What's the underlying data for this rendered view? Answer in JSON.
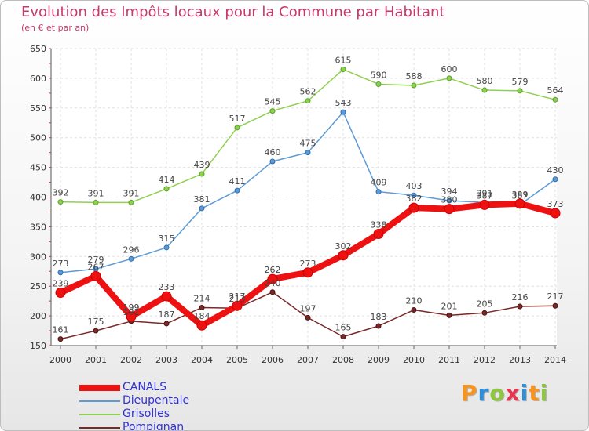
{
  "header": {
    "title": "Evolution des Impôts locaux pour la Commune par Habitant",
    "subtitle": "(en € et par an)"
  },
  "logo": {
    "text": "Proxiti",
    "letters": [
      {
        "char": "P",
        "color": "#f7941d"
      },
      {
        "char": "r",
        "color": "#2e8fd8"
      },
      {
        "char": "o",
        "color": "#8dc63f"
      },
      {
        "char": "x",
        "color": "#e8344e"
      },
      {
        "char": "i",
        "color": "#2e8fd8"
      },
      {
        "char": "t",
        "color": "#f7941d"
      },
      {
        "char": "i",
        "color": "#8dc63f"
      }
    ]
  },
  "chart_data": {
    "type": "line",
    "title": "Evolution des Impôts locaux pour la Commune par Habitant",
    "subtitle": "(en € et par an)",
    "categories": [
      "2000",
      "2001",
      "2002",
      "2003",
      "2004",
      "2005",
      "2006",
      "2007",
      "2008",
      "2009",
      "2010",
      "2011",
      "2012",
      "2013",
      "2014"
    ],
    "ylim": [
      150,
      650
    ],
    "yticks": [
      150,
      200,
      250,
      300,
      350,
      400,
      450,
      500,
      550,
      600,
      650
    ],
    "grid": true,
    "legend": "bottom-left",
    "series": [
      {
        "name": "CANALS",
        "color": "#ee1111",
        "values": [
          239,
          267,
          199,
          233,
          184,
          217,
          262,
          273,
          302,
          338,
          382,
          380,
          387,
          389,
          373
        ]
      },
      {
        "name": "Dieupentale",
        "color": "#5c9bd6",
        "values": [
          273,
          279,
          296,
          315,
          381,
          411,
          460,
          475,
          543,
          409,
          403,
          394,
          391,
          387,
          430
        ]
      },
      {
        "name": "Grisolles",
        "color": "#90d050",
        "values": [
          392,
          391,
          391,
          414,
          439,
          517,
          545,
          562,
          615,
          590,
          588,
          600,
          580,
          579,
          564
        ]
      },
      {
        "name": "Pompignan",
        "color": "#7a2828",
        "values": [
          161,
          175,
          191,
          187,
          214,
          213,
          240,
          197,
          165,
          183,
          210,
          201,
          205,
          216,
          217
        ]
      }
    ]
  }
}
